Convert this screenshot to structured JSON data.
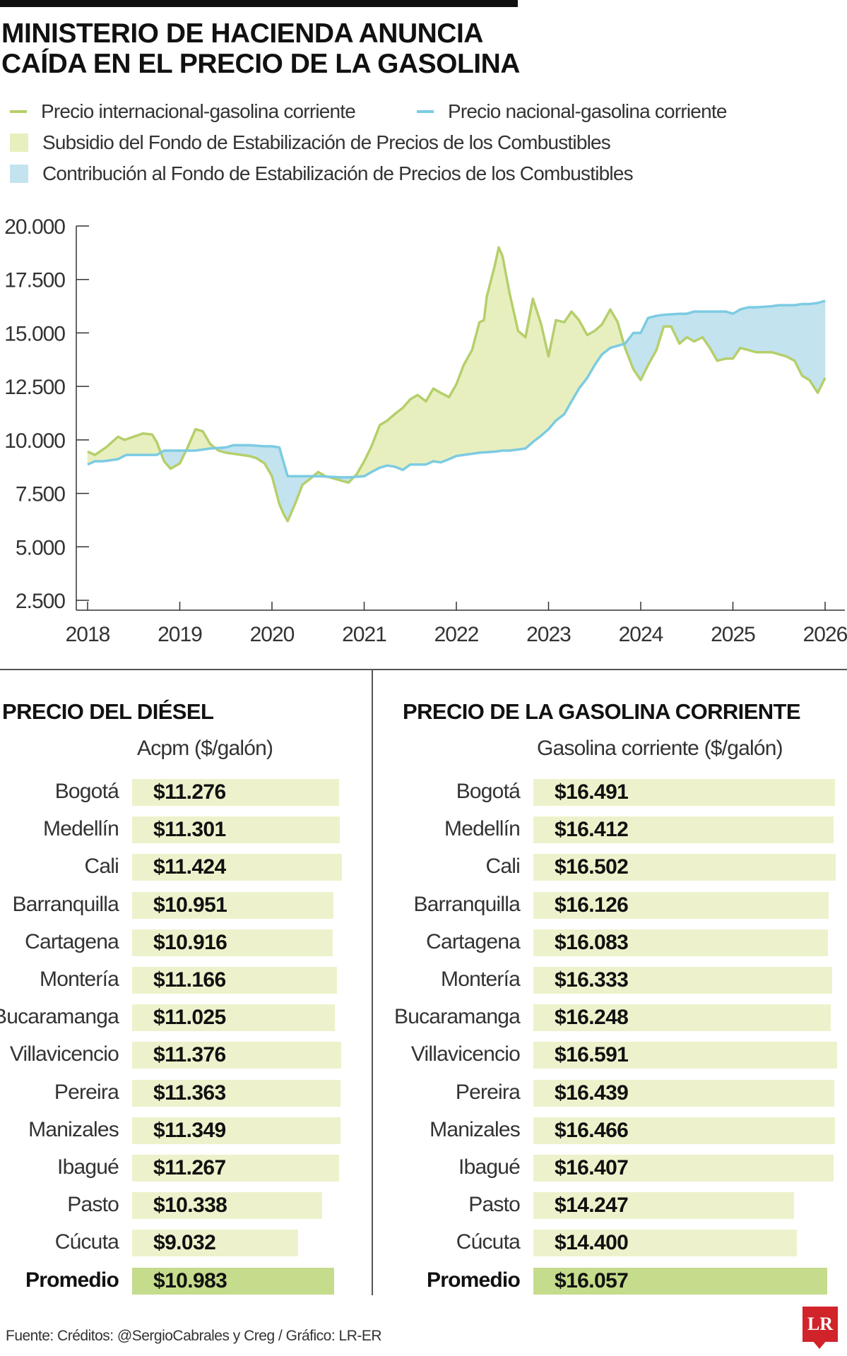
{
  "title_line1": "MINISTERIO DE HACIENDA ANUNCIA",
  "title_line2": "CAÍDA EN EL PRECIO DE LA GASOLINA",
  "legend": {
    "intl": "Precio internacional-gasolina corriente",
    "national": "Precio nacional-gasolina corriente",
    "subsidy": "Subsidio del Fondo de Estabilización de Precios de los Combustibles",
    "contribution": "Contribución al Fondo de Estabilización de Precios de los Combustibles"
  },
  "colors": {
    "intl_line": "#b5cf6b",
    "national_line": "#7ccbe2",
    "subsidy_fill": "#e8efbf",
    "contribution_fill": "#c3e3ef",
    "bar": "#eef2cc",
    "bar_avg": "#c5dc8c",
    "logo": "#d1232a"
  },
  "chart_data": {
    "type": "line",
    "x_unit": "year",
    "x_ticks": [
      "2018",
      "2019",
      "2020",
      "2021",
      "2022",
      "2023",
      "2024",
      "2025",
      "2026"
    ],
    "y_ticks": [
      "20.000",
      "17.500",
      "15.000",
      "12.500",
      "10.000",
      "7.500",
      "5.000",
      "2.500"
    ],
    "ylim": [
      2500,
      20000
    ],
    "xlim": [
      2018,
      2026
    ],
    "grid": false,
    "series": [
      {
        "name": "Precio internacional-gasolina corriente",
        "x": [
          2018.0,
          2018.08,
          2018.2,
          2018.33,
          2018.4,
          2018.5,
          2018.6,
          2018.7,
          2018.75,
          2018.83,
          2018.9,
          2019.0,
          2019.08,
          2019.17,
          2019.25,
          2019.33,
          2019.42,
          2019.5,
          2019.58,
          2019.67,
          2019.75,
          2019.83,
          2019.92,
          2020.0,
          2020.08,
          2020.13,
          2020.17,
          2020.25,
          2020.33,
          2020.42,
          2020.5,
          2020.58,
          2020.67,
          2020.75,
          2020.83,
          2020.92,
          2021.0,
          2021.08,
          2021.17,
          2021.25,
          2021.33,
          2021.42,
          2021.5,
          2021.58,
          2021.67,
          2021.75,
          2021.83,
          2021.92,
          2022.0,
          2022.08,
          2022.17,
          2022.25,
          2022.3,
          2022.33,
          2022.42,
          2022.46,
          2022.5,
          2022.58,
          2022.67,
          2022.75,
          2022.83,
          2022.92,
          2023.0,
          2023.08,
          2023.17,
          2023.25,
          2023.33,
          2023.42,
          2023.5,
          2023.58,
          2023.67,
          2023.75,
          2023.83,
          2023.92,
          2024.0,
          2024.08,
          2024.17,
          2024.25,
          2024.33,
          2024.42,
          2024.5,
          2024.58,
          2024.67,
          2024.75,
          2024.83,
          2024.92,
          2025.0,
          2025.08,
          2025.17,
          2025.25,
          2025.33,
          2025.42,
          2025.5,
          2025.58,
          2025.67,
          2025.75,
          2025.83,
          2025.92,
          2026.0
        ],
        "values": [
          9.45,
          9.3,
          9.65,
          10.15,
          10.0,
          10.15,
          10.3,
          10.25,
          9.9,
          9.0,
          8.65,
          8.9,
          9.6,
          10.5,
          10.4,
          9.8,
          9.5,
          9.4,
          9.35,
          9.3,
          9.25,
          9.15,
          8.9,
          8.3,
          7.0,
          6.5,
          6.2,
          7.0,
          7.9,
          8.2,
          8.5,
          8.3,
          8.2,
          8.1,
          8.0,
          8.4,
          9.0,
          9.7,
          10.7,
          10.9,
          11.2,
          11.5,
          11.9,
          12.1,
          11.8,
          12.4,
          12.2,
          12.0,
          12.6,
          13.5,
          14.2,
          15.5,
          15.6,
          16.7,
          18.2,
          19.0,
          18.6,
          16.8,
          15.1,
          14.8,
          16.6,
          15.4,
          13.9,
          15.6,
          15.5,
          16.0,
          15.6,
          14.9,
          15.1,
          15.4,
          16.1,
          15.5,
          14.3,
          13.3,
          12.8,
          13.5,
          14.2,
          15.3,
          15.3,
          14.5,
          14.8,
          14.6,
          14.8,
          14.3,
          13.7,
          13.8,
          13.8,
          14.3,
          14.2,
          14.1,
          14.1,
          14.1,
          14.0,
          13.9,
          13.7,
          13.0,
          12.8,
          12.2,
          12.9
        ],
        "value_scale": "thousand"
      },
      {
        "name": "Precio nacional-gasolina corriente",
        "x": [
          2018.0,
          2018.08,
          2018.17,
          2018.33,
          2018.42,
          2018.5,
          2018.58,
          2018.67,
          2018.75,
          2018.83,
          2019.0,
          2019.17,
          2019.33,
          2019.5,
          2019.58,
          2019.75,
          2019.92,
          2020.0,
          2020.08,
          2020.17,
          2020.25,
          2020.5,
          2020.75,
          2020.83,
          2021.0,
          2021.08,
          2021.17,
          2021.25,
          2021.33,
          2021.42,
          2021.5,
          2021.58,
          2021.67,
          2021.75,
          2021.83,
          2021.92,
          2022.0,
          2022.08,
          2022.17,
          2022.25,
          2022.42,
          2022.5,
          2022.58,
          2022.67,
          2022.75,
          2022.83,
          2022.92,
          2023.0,
          2023.08,
          2023.17,
          2023.25,
          2023.33,
          2023.42,
          2023.5,
          2023.58,
          2023.67,
          2023.75,
          2023.83,
          2023.92,
          2024.0,
          2024.08,
          2024.17,
          2024.25,
          2024.42,
          2024.5,
          2024.58,
          2024.67,
          2024.75,
          2024.83,
          2024.92,
          2025.0,
          2025.08,
          2025.17,
          2025.25,
          2025.42,
          2025.5,
          2025.58,
          2025.67,
          2025.75,
          2025.83,
          2025.92,
          2026.0
        ],
        "values": [
          8.85,
          9.0,
          9.0,
          9.1,
          9.3,
          9.3,
          9.3,
          9.3,
          9.3,
          9.5,
          9.5,
          9.5,
          9.6,
          9.65,
          9.75,
          9.75,
          9.7,
          9.7,
          9.65,
          8.3,
          8.3,
          8.3,
          8.25,
          8.25,
          8.3,
          8.5,
          8.7,
          8.8,
          8.75,
          8.6,
          8.85,
          8.85,
          8.85,
          9.0,
          8.95,
          9.1,
          9.25,
          9.3,
          9.35,
          9.4,
          9.45,
          9.5,
          9.5,
          9.55,
          9.6,
          9.9,
          10.2,
          10.5,
          10.9,
          11.2,
          11.8,
          12.4,
          12.9,
          13.5,
          14.0,
          14.3,
          14.4,
          14.5,
          15.0,
          15.0,
          15.7,
          15.8,
          15.85,
          15.9,
          15.9,
          16.0,
          16.0,
          16.0,
          16.0,
          16.0,
          15.9,
          16.1,
          16.2,
          16.2,
          16.25,
          16.3,
          16.3,
          16.3,
          16.35,
          16.35,
          16.4,
          16.5
        ],
        "value_scale": "thousand"
      }
    ]
  },
  "diesel": {
    "title": "PRECIO DEL DIÉSEL",
    "subtitle": "Acpm ($/galón)",
    "rows": [
      {
        "city": "Bogotá",
        "value": "$11.276",
        "amount": 11276
      },
      {
        "city": "Medellín",
        "value": "$11.301",
        "amount": 11301
      },
      {
        "city": "Cali",
        "value": "$11.424",
        "amount": 11424
      },
      {
        "city": "Barranquilla",
        "value": "$10.951",
        "amount": 10951
      },
      {
        "city": "Cartagena",
        "value": "$10.916",
        "amount": 10916
      },
      {
        "city": "Montería",
        "value": "$11.166",
        "amount": 11166
      },
      {
        "city": "Bucaramanga",
        "value": "$11.025",
        "amount": 11025
      },
      {
        "city": "Villavicencio",
        "value": "$11.376",
        "amount": 11376
      },
      {
        "city": "Pereira",
        "value": "$11.363",
        "amount": 11363
      },
      {
        "city": "Manizales",
        "value": "$11.349",
        "amount": 11349
      },
      {
        "city": "Ibagué",
        "value": "$11.267",
        "amount": 11267
      },
      {
        "city": "Pasto",
        "value": "$10.338",
        "amount": 10338
      },
      {
        "city": "Cúcuta",
        "value": "$9.032",
        "amount": 9032
      }
    ],
    "average": {
      "city": "Promedio",
      "value": "$10.983",
      "amount": 10983
    }
  },
  "gasoline": {
    "title": "PRECIO DE LA GASOLINA CORRIENTE",
    "subtitle": "Gasolina corriente ($/galón)",
    "rows": [
      {
        "city": "Bogotá",
        "value": "$16.491",
        "amount": 16491
      },
      {
        "city": "Medellín",
        "value": "$16.412",
        "amount": 16412
      },
      {
        "city": "Cali",
        "value": "$16.502",
        "amount": 16502
      },
      {
        "city": "Barranquilla",
        "value": "$16.126",
        "amount": 16126
      },
      {
        "city": "Cartagena",
        "value": "$16.083",
        "amount": 16083
      },
      {
        "city": "Montería",
        "value": "$16.333",
        "amount": 16333
      },
      {
        "city": "Bucaramanga",
        "value": "$16.248",
        "amount": 16248
      },
      {
        "city": "Villavicencio",
        "value": "$16.591",
        "amount": 16591
      },
      {
        "city": "Pereira",
        "value": "$16.439",
        "amount": 16439
      },
      {
        "city": "Manizales",
        "value": "$16.466",
        "amount": 16466
      },
      {
        "city": "Ibagué",
        "value": "$16.407",
        "amount": 16407
      },
      {
        "city": "Pasto",
        "value": "$14.247",
        "amount": 14247
      },
      {
        "city": "Cúcuta",
        "value": "$14.400",
        "amount": 14400
      }
    ],
    "average": {
      "city": "Promedio",
      "value": "$16.057",
      "amount": 16057
    }
  },
  "source": "Fuente: Créditos: @SergioCabrales y Creg / Gráfico: LR-ER",
  "logo": "LR"
}
